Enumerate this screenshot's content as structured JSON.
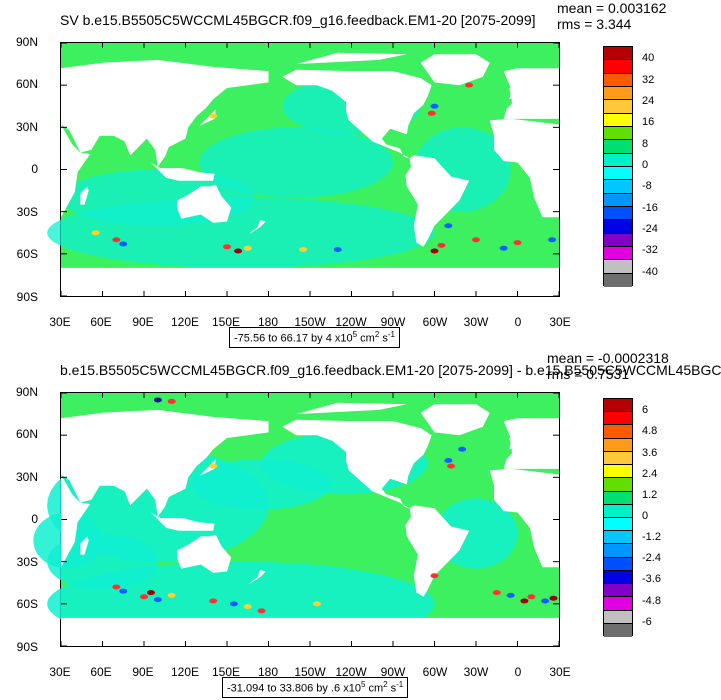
{
  "panels": [
    {
      "title": "SV b.e15.B5505C5WCCML45BGCR.f09_g16.feedback.EM1-20 [2075-2099]",
      "mean": "mean = 0.003162",
      "rms": "rms = 3.344",
      "range_prefix": "-75.56 to 66.17 by 4 x10",
      "range_exp": "5",
      "range_units": " cm",
      "range_units_exp": "2",
      "range_suffix": " s",
      "range_suffix_exp": "-1",
      "colorbar_labels": [
        "40",
        "32",
        "24",
        "16",
        "8",
        "0",
        "-8",
        "-16",
        "-24",
        "-32",
        "-40"
      ]
    },
    {
      "title": "b.e15.B5505C5WCCML45BGCR.f09_g16.feedback.EM1-20 [2075-2099] - b.e15.B5505C5WCCML45BGC",
      "mean": "mean = -0.0002318",
      "rms": "rms = 0.7531",
      "range_prefix": "-31.094 to 33.806 by .6 x10",
      "range_exp": "5",
      "range_units": " cm",
      "range_units_exp": "2",
      "range_suffix": " s",
      "range_suffix_exp": "-1",
      "colorbar_labels": [
        "6",
        "4.8",
        "3.6",
        "2.4",
        "1.2",
        "0",
        "-1.2",
        "-2.4",
        "-3.6",
        "-4.8",
        "-6"
      ]
    }
  ],
  "lat_labels": [
    "90N",
    "60N",
    "30N",
    "0",
    "30S",
    "60S",
    "90S"
  ],
  "lon_labels": [
    "30E",
    "60E",
    "90E",
    "120E",
    "150E",
    "180",
    "150W",
    "120W",
    "90W",
    "60W",
    "30W",
    "0",
    "30E"
  ],
  "colorbar_colors": [
    "#b40000",
    "#ff0000",
    "#ff5a00",
    "#ff9a1a",
    "#ffc83a",
    "#ffff00",
    "#60e000",
    "#00e070",
    "#00f0c8",
    "#00ffff",
    "#00c8ff",
    "#0096ff",
    "#0050ff",
    "#0000e6",
    "#8000c8",
    "#e000e0",
    "#c0c0c0",
    "#6e6e6e"
  ],
  "map_colors": {
    "land": "#ffffff",
    "ocean_green": "#3cf060",
    "ocean_cyan": "#10f0d0",
    "ocean_aqua": "#50ffe8",
    "hot": "#ff3030",
    "warm": "#ffd030",
    "cold": "#1060ff",
    "dark_red": "#a00000",
    "dark_blue": "#1010a0"
  }
}
